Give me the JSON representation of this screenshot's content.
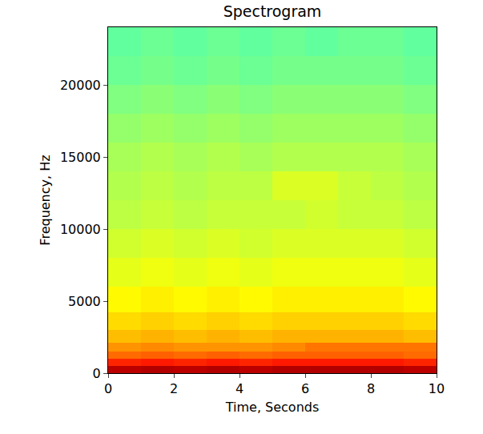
{
  "chart_data": {
    "type": "heatmap",
    "title": "Spectrogram",
    "x_label": "Time, Seconds",
    "y_label": "Frequency, Hz",
    "x": [
      0.5,
      1.5,
      2.5,
      3.5,
      4.5,
      5.5,
      6.5,
      7.5,
      8.5,
      9.5
    ],
    "y": [
      250,
      750,
      1250,
      1750,
      2500,
      3500,
      5000,
      7000,
      9000,
      11000,
      13000,
      15000,
      17000,
      19000,
      21000,
      23000
    ],
    "cells": [
      [
        -6,
        -5,
        -6,
        -5,
        -6,
        -5,
        -5,
        -5,
        -5,
        -6
      ],
      [
        -16,
        -15,
        -16,
        -15,
        -16,
        -15,
        -15,
        -15,
        -15,
        -16
      ],
      [
        -23,
        -22,
        -23,
        -22,
        -23,
        -22,
        -22,
        -22,
        -22,
        -23
      ],
      [
        -27,
        -26,
        -27,
        -27,
        -27,
        -26,
        -24,
        -24,
        -24,
        -24
      ],
      [
        -31,
        -30,
        -31,
        -30,
        -31,
        -30,
        -30,
        -30,
        -30,
        -31
      ],
      [
        -34,
        -33,
        -34,
        -33,
        -34,
        -33,
        -33,
        -33,
        -33,
        -34
      ],
      [
        -37,
        -36,
        -37,
        -36,
        -37,
        -36,
        -36,
        -36,
        -36,
        -37
      ],
      [
        -40,
        -39,
        -40,
        -39,
        -40,
        -39,
        -39,
        -39,
        -39,
        -40
      ],
      [
        -42,
        -41,
        -42,
        -41,
        -42,
        -41,
        -41,
        -41,
        -41,
        -42
      ],
      [
        -44,
        -43,
        -44,
        -43,
        -43,
        -43,
        -42,
        -43,
        -43,
        -44
      ],
      [
        -45,
        -44,
        -45,
        -44,
        -44,
        -41,
        -41,
        -43,
        -44,
        -45
      ],
      [
        -46,
        -45,
        -46,
        -45,
        -46,
        -45,
        -45,
        -45,
        -45,
        -46
      ],
      [
        -48,
        -47,
        -48,
        -47,
        -48,
        -47,
        -47,
        -47,
        -47,
        -48
      ],
      [
        -50,
        -49,
        -50,
        -49,
        -50,
        -49,
        -49,
        -49,
        -49,
        -50
      ],
      [
        -52,
        -51,
        -52,
        -51,
        -52,
        -51,
        -51,
        -51,
        -51,
        -52
      ],
      [
        -53,
        -52,
        -53,
        -52,
        -53,
        -52,
        -53,
        -52,
        -52,
        -53
      ]
    ],
    "zlim": [
      -100,
      0
    ],
    "xlim": [
      0,
      10
    ],
    "xticks": [
      0,
      2,
      4,
      6,
      8,
      10
    ],
    "ylim": [
      0,
      24000
    ],
    "yticks": [
      0,
      5000,
      10000,
      15000,
      20000
    ],
    "grid": false
  }
}
